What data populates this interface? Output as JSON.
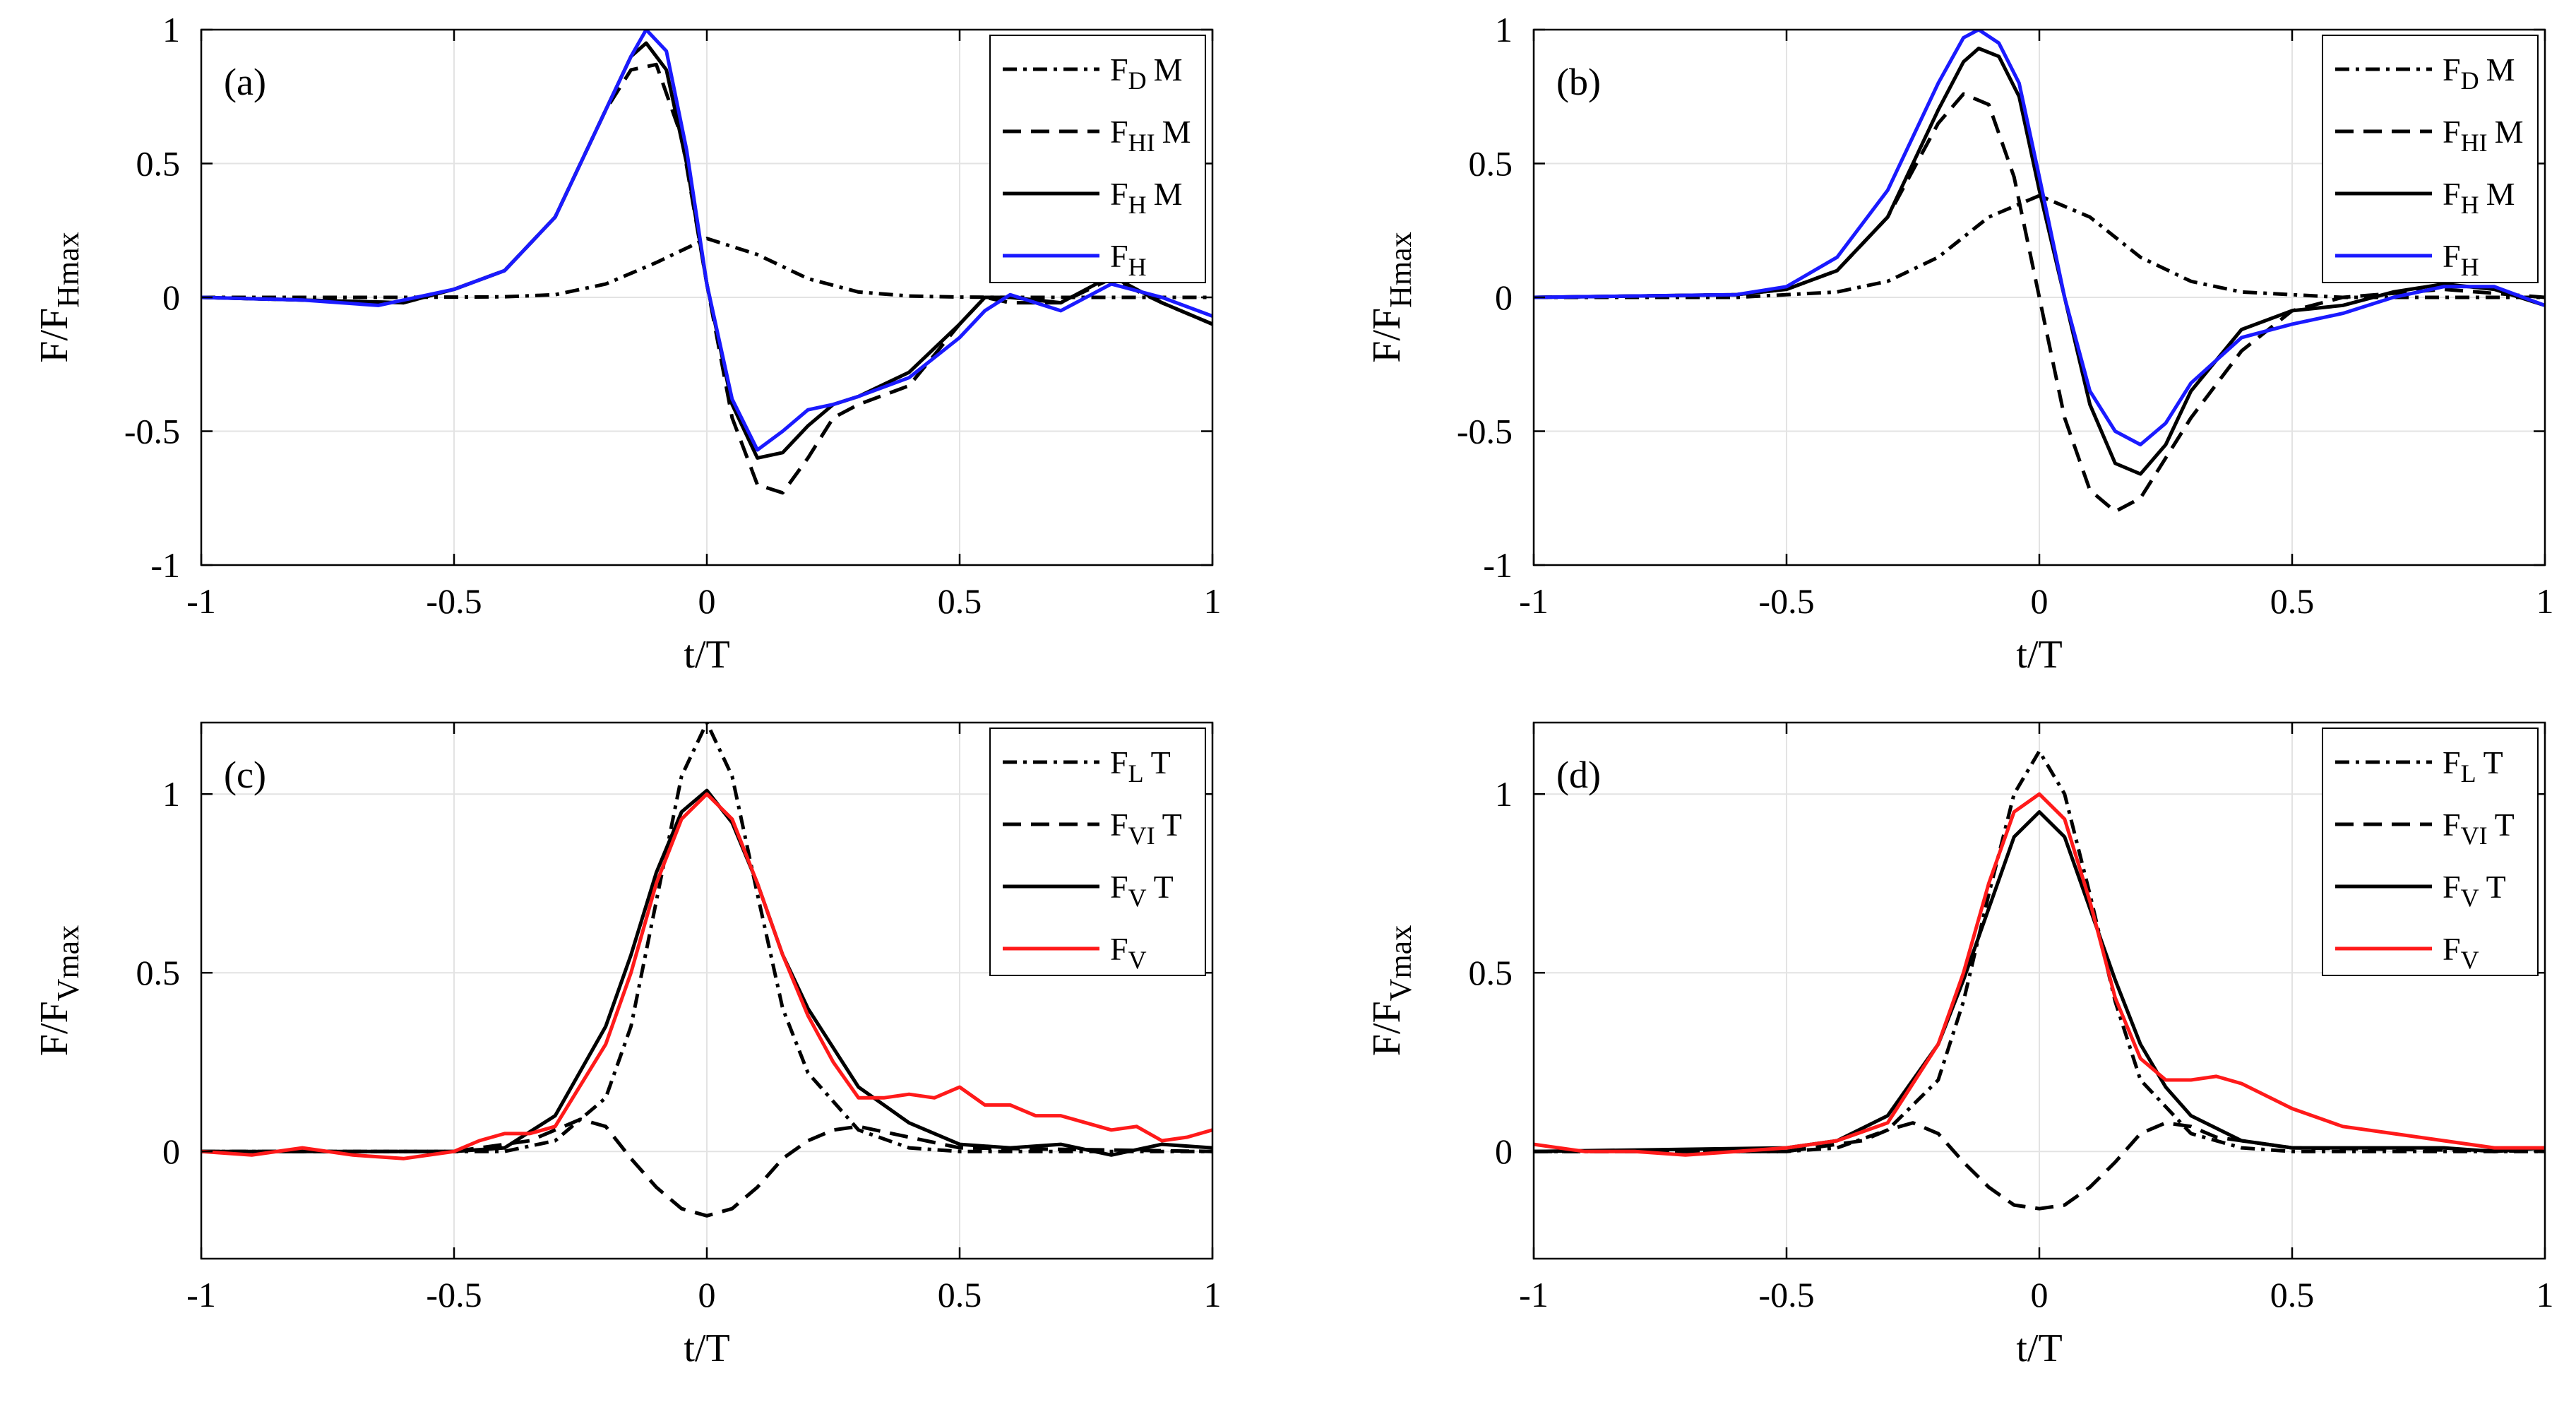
{
  "figure": {
    "colors": {
      "black": "#000000",
      "blue": "#1a1aff",
      "red": "#ff1a1a",
      "grid": "#e3e3e3"
    }
  },
  "chart_data": [
    {
      "panel": "(a)",
      "type": "line",
      "xlabel": "t/T",
      "ylabel": {
        "main": "F/F",
        "sub": "Hmax"
      },
      "xlim": [
        -1,
        1
      ],
      "ylim": [
        -1,
        1
      ],
      "xticks": [
        "-1",
        "-0.5",
        "0",
        "0.5",
        "1"
      ],
      "yticks": [
        "-1",
        "-0.5",
        "0",
        "0.5",
        "1"
      ],
      "grid": true,
      "legend_position": "top-right",
      "series": [
        {
          "name": "FD M",
          "legend_main": "F",
          "legend_sub": "D",
          "legend_suffix": "M",
          "color": "#000000",
          "style": "dashdot",
          "x": [
            -1,
            -0.8,
            -0.6,
            -0.4,
            -0.3,
            -0.2,
            -0.1,
            0,
            0.1,
            0.2,
            0.3,
            0.4,
            0.5,
            0.6,
            0.8,
            1
          ],
          "y": [
            0,
            0,
            0,
            0.002,
            0.01,
            0.05,
            0.13,
            0.22,
            0.16,
            0.07,
            0.02,
            0.005,
            0.001,
            0,
            0,
            0
          ]
        },
        {
          "name": "FHI M",
          "legend_main": "F",
          "legend_sub": "HI",
          "legend_suffix": "M",
          "color": "#000000",
          "style": "dashed",
          "x": [
            -1,
            -0.8,
            -0.6,
            -0.5,
            -0.4,
            -0.3,
            -0.2,
            -0.15,
            -0.1,
            -0.05,
            0,
            0.05,
            0.1,
            0.15,
            0.2,
            0.25,
            0.3,
            0.4,
            0.5,
            0.55,
            0.6,
            0.7,
            0.8,
            0.9,
            1
          ],
          "y": [
            0,
            -0.01,
            -0.02,
            0.03,
            0.1,
            0.3,
            0.7,
            0.85,
            0.87,
            0.6,
            0.05,
            -0.45,
            -0.7,
            -0.73,
            -0.6,
            -0.45,
            -0.4,
            -0.33,
            -0.1,
            0,
            -0.02,
            -0.02,
            0.07,
            -0.02,
            -0.1
          ]
        },
        {
          "name": "FH M",
          "legend_main": "F",
          "legend_sub": "H",
          "legend_suffix": "M",
          "color": "#000000",
          "style": "solid",
          "x": [
            -1,
            -0.8,
            -0.6,
            -0.5,
            -0.4,
            -0.3,
            -0.2,
            -0.15,
            -0.12,
            -0.08,
            -0.04,
            0,
            0.05,
            0.1,
            0.15,
            0.2,
            0.25,
            0.3,
            0.4,
            0.5,
            0.55,
            0.6,
            0.7,
            0.8,
            0.9,
            1
          ],
          "y": [
            0,
            -0.01,
            -0.02,
            0.03,
            0.1,
            0.3,
            0.7,
            0.9,
            0.95,
            0.85,
            0.5,
            0.05,
            -0.4,
            -0.6,
            -0.58,
            -0.48,
            -0.4,
            -0.37,
            -0.28,
            -0.1,
            0,
            0,
            -0.02,
            0.08,
            -0.02,
            -0.1
          ]
        },
        {
          "name": "FH",
          "legend_main": "F",
          "legend_sub": "H",
          "legend_suffix": "",
          "color": "#1a1aff",
          "style": "solid",
          "x": [
            -1,
            -0.8,
            -0.65,
            -0.5,
            -0.4,
            -0.3,
            -0.2,
            -0.15,
            -0.12,
            -0.08,
            -0.04,
            0,
            0.05,
            0.1,
            0.15,
            0.2,
            0.25,
            0.3,
            0.4,
            0.5,
            0.55,
            0.6,
            0.7,
            0.8,
            0.9,
            1
          ],
          "y": [
            0,
            -0.01,
            -0.03,
            0.03,
            0.1,
            0.3,
            0.7,
            0.9,
            1.0,
            0.92,
            0.55,
            0.05,
            -0.38,
            -0.57,
            -0.5,
            -0.42,
            -0.4,
            -0.37,
            -0.3,
            -0.15,
            -0.05,
            0.01,
            -0.05,
            0.05,
            0.0,
            -0.07
          ]
        }
      ]
    },
    {
      "panel": "(b)",
      "type": "line",
      "xlabel": "t/T",
      "ylabel": {
        "main": "F/F",
        "sub": "Hmax"
      },
      "xlim": [
        -1,
        1
      ],
      "ylim": [
        -1,
        1
      ],
      "xticks": [
        "-1",
        "-0.5",
        "0",
        "0.5",
        "1"
      ],
      "yticks": [
        "-1",
        "-0.5",
        "0",
        "0.5",
        "1"
      ],
      "grid": true,
      "legend_position": "top-right",
      "series": [
        {
          "name": "FD M",
          "legend_main": "F",
          "legend_sub": "D",
          "legend_suffix": "M",
          "color": "#000000",
          "style": "dashdot",
          "x": [
            -1,
            -0.6,
            -0.4,
            -0.3,
            -0.2,
            -0.1,
            0,
            0.1,
            0.2,
            0.3,
            0.4,
            0.6,
            1
          ],
          "y": [
            0,
            0,
            0.02,
            0.06,
            0.15,
            0.3,
            0.38,
            0.3,
            0.15,
            0.06,
            0.02,
            0,
            0
          ]
        },
        {
          "name": "FHI M",
          "legend_main": "F",
          "legend_sub": "HI",
          "legend_suffix": "M",
          "color": "#000000",
          "style": "dashed",
          "x": [
            -1,
            -0.6,
            -0.5,
            -0.4,
            -0.3,
            -0.2,
            -0.15,
            -0.1,
            -0.05,
            0,
            0.05,
            0.1,
            0.15,
            0.2,
            0.3,
            0.4,
            0.5,
            0.6,
            0.8,
            1
          ],
          "y": [
            0,
            0.01,
            0.03,
            0.1,
            0.3,
            0.65,
            0.76,
            0.72,
            0.45,
            0.0,
            -0.45,
            -0.72,
            -0.8,
            -0.75,
            -0.45,
            -0.2,
            -0.05,
            0,
            0.03,
            0
          ]
        },
        {
          "name": "FH M",
          "legend_main": "F",
          "legend_sub": "H",
          "legend_suffix": "M",
          "color": "#000000",
          "style": "solid",
          "x": [
            -1,
            -0.6,
            -0.5,
            -0.4,
            -0.3,
            -0.2,
            -0.15,
            -0.12,
            -0.08,
            -0.04,
            0,
            0.05,
            0.1,
            0.15,
            0.2,
            0.25,
            0.3,
            0.4,
            0.5,
            0.6,
            0.7,
            0.8,
            0.9,
            1
          ],
          "y": [
            0,
            0.01,
            0.03,
            0.1,
            0.3,
            0.7,
            0.88,
            0.93,
            0.9,
            0.75,
            0.4,
            0.0,
            -0.4,
            -0.62,
            -0.66,
            -0.55,
            -0.35,
            -0.12,
            -0.05,
            -0.03,
            0.02,
            0.05,
            0.03,
            -0.03
          ]
        },
        {
          "name": "FH",
          "legend_main": "F",
          "legend_sub": "H",
          "legend_suffix": "",
          "color": "#1a1aff",
          "style": "solid",
          "x": [
            -1,
            -0.6,
            -0.5,
            -0.4,
            -0.3,
            -0.2,
            -0.15,
            -0.12,
            -0.08,
            -0.04,
            0,
            0.05,
            0.1,
            0.15,
            0.2,
            0.25,
            0.3,
            0.4,
            0.5,
            0.6,
            0.7,
            0.8,
            0.9,
            1
          ],
          "y": [
            0,
            0.01,
            0.04,
            0.15,
            0.4,
            0.8,
            0.97,
            1.0,
            0.95,
            0.8,
            0.45,
            0.0,
            -0.35,
            -0.5,
            -0.55,
            -0.47,
            -0.32,
            -0.15,
            -0.1,
            -0.06,
            0.0,
            0.04,
            0.04,
            -0.03
          ]
        }
      ]
    },
    {
      "panel": "(c)",
      "type": "line",
      "xlabel": "t/T",
      "ylabel": {
        "main": "F/F",
        "sub": "Vmax"
      },
      "xlim": [
        -1,
        1
      ],
      "ylim": [
        -0.3,
        1.2
      ],
      "xticks": [
        "-1",
        "-0.5",
        "0",
        "0.5",
        "1"
      ],
      "yticks": [
        "0",
        "0.5",
        "1"
      ],
      "grid": true,
      "legend_position": "top-right",
      "series": [
        {
          "name": "FL T",
          "legend_main": "F",
          "legend_sub": "L",
          "legend_suffix": "T",
          "color": "#000000",
          "style": "dashdot",
          "x": [
            -1,
            -0.4,
            -0.3,
            -0.2,
            -0.15,
            -0.1,
            -0.05,
            0,
            0.05,
            0.1,
            0.15,
            0.2,
            0.3,
            0.4,
            0.5,
            1
          ],
          "y": [
            0,
            0,
            0.03,
            0.15,
            0.35,
            0.7,
            1.05,
            1.2,
            1.05,
            0.72,
            0.4,
            0.22,
            0.06,
            0.01,
            0,
            0
          ]
        },
        {
          "name": "FVI T",
          "legend_main": "F",
          "legend_sub": "VI",
          "legend_suffix": "T",
          "color": "#000000",
          "style": "dashed",
          "x": [
            -1,
            -0.5,
            -0.35,
            -0.25,
            -0.2,
            -0.15,
            -0.1,
            -0.05,
            0,
            0.05,
            0.1,
            0.15,
            0.2,
            0.25,
            0.3,
            0.4,
            0.5,
            1
          ],
          "y": [
            0,
            0,
            0.03,
            0.09,
            0.07,
            -0.02,
            -0.1,
            -0.16,
            -0.18,
            -0.16,
            -0.1,
            -0.02,
            0.03,
            0.06,
            0.07,
            0.04,
            0.01,
            0
          ]
        },
        {
          "name": "FV T",
          "legend_main": "F",
          "legend_sub": "V",
          "legend_suffix": "T",
          "color": "#000000",
          "style": "solid",
          "x": [
            -1,
            -0.5,
            -0.4,
            -0.3,
            -0.2,
            -0.15,
            -0.1,
            -0.05,
            0,
            0.05,
            0.1,
            0.15,
            0.2,
            0.3,
            0.4,
            0.5,
            0.6,
            0.7,
            0.8,
            0.9,
            1
          ],
          "y": [
            0,
            0,
            0.01,
            0.1,
            0.35,
            0.55,
            0.78,
            0.95,
            1.01,
            0.92,
            0.75,
            0.55,
            0.4,
            0.18,
            0.08,
            0.02,
            0.01,
            0.02,
            -0.01,
            0.02,
            0.01
          ]
        },
        {
          "name": "FV",
          "legend_main": "F",
          "legend_sub": "V",
          "legend_suffix": "",
          "color": "#ff1a1a",
          "style": "solid",
          "x": [
            -1,
            -0.9,
            -0.8,
            -0.7,
            -0.6,
            -0.5,
            -0.45,
            -0.4,
            -0.35,
            -0.3,
            -0.2,
            -0.15,
            -0.1,
            -0.05,
            0,
            0.05,
            0.1,
            0.15,
            0.2,
            0.25,
            0.3,
            0.35,
            0.4,
            0.45,
            0.5,
            0.55,
            0.6,
            0.65,
            0.7,
            0.75,
            0.8,
            0.85,
            0.9,
            0.95,
            1
          ],
          "y": [
            0,
            -0.01,
            0.01,
            -0.01,
            -0.02,
            0.0,
            0.03,
            0.05,
            0.05,
            0.07,
            0.3,
            0.5,
            0.75,
            0.93,
            1.0,
            0.93,
            0.75,
            0.55,
            0.38,
            0.25,
            0.15,
            0.15,
            0.16,
            0.15,
            0.18,
            0.13,
            0.13,
            0.1,
            0.1,
            0.08,
            0.06,
            0.07,
            0.03,
            0.04,
            0.06
          ]
        }
      ]
    },
    {
      "panel": "(d)",
      "type": "line",
      "xlabel": "t/T",
      "ylabel": {
        "main": "F/F",
        "sub": "Vmax"
      },
      "xlim": [
        -1,
        1
      ],
      "ylim": [
        -0.3,
        1.2
      ],
      "xticks": [
        "-1",
        "-0.5",
        "0",
        "0.5",
        "1"
      ],
      "yticks": [
        "0",
        "0.5",
        "1"
      ],
      "grid": true,
      "legend_position": "top-right",
      "series": [
        {
          "name": "FL T",
          "legend_main": "F",
          "legend_sub": "L",
          "legend_suffix": "T",
          "color": "#000000",
          "style": "dashdot",
          "x": [
            -1,
            -0.5,
            -0.4,
            -0.3,
            -0.2,
            -0.15,
            -0.1,
            -0.05,
            0,
            0.05,
            0.1,
            0.15,
            0.2,
            0.3,
            0.4,
            0.5,
            1
          ],
          "y": [
            0,
            0,
            0.01,
            0.06,
            0.2,
            0.42,
            0.72,
            1.0,
            1.12,
            1.0,
            0.72,
            0.42,
            0.2,
            0.05,
            0.01,
            0,
            0
          ]
        },
        {
          "name": "FVI T",
          "legend_main": "F",
          "legend_sub": "VI",
          "legend_suffix": "T",
          "color": "#000000",
          "style": "dashed",
          "x": [
            -1,
            -0.5,
            -0.35,
            -0.3,
            -0.25,
            -0.2,
            -0.15,
            -0.1,
            -0.05,
            0,
            0.05,
            0.1,
            0.15,
            0.2,
            0.25,
            0.3,
            0.35,
            0.5,
            1
          ],
          "y": [
            0,
            0,
            0.03,
            0.06,
            0.08,
            0.05,
            -0.03,
            -0.1,
            -0.15,
            -0.16,
            -0.15,
            -0.1,
            -0.03,
            0.05,
            0.08,
            0.07,
            0.04,
            0.01,
            0
          ]
        },
        {
          "name": "FV T",
          "legend_main": "F",
          "legend_sub": "V",
          "legend_suffix": "T",
          "color": "#000000",
          "style": "solid",
          "x": [
            -1,
            -0.5,
            -0.4,
            -0.3,
            -0.2,
            -0.15,
            -0.1,
            -0.05,
            0,
            0.05,
            0.1,
            0.15,
            0.2,
            0.25,
            0.3,
            0.4,
            0.5,
            0.6,
            0.7,
            0.8,
            0.9,
            1
          ],
          "y": [
            0,
            0.01,
            0.03,
            0.1,
            0.3,
            0.48,
            0.68,
            0.88,
            0.95,
            0.88,
            0.68,
            0.48,
            0.3,
            0.18,
            0.1,
            0.03,
            0.01,
            0.01,
            0.01,
            0.01,
            0.0,
            0.01
          ]
        },
        {
          "name": "FV",
          "legend_main": "F",
          "legend_sub": "V",
          "legend_suffix": "",
          "color": "#ff1a1a",
          "style": "solid",
          "x": [
            -1,
            -0.9,
            -0.8,
            -0.7,
            -0.6,
            -0.5,
            -0.4,
            -0.3,
            -0.2,
            -0.15,
            -0.1,
            -0.05,
            0,
            0.05,
            0.1,
            0.15,
            0.2,
            0.25,
            0.3,
            0.35,
            0.4,
            0.5,
            0.6,
            0.7,
            0.8,
            0.9,
            1
          ],
          "y": [
            0.02,
            0.0,
            0.0,
            -0.01,
            0.0,
            0.01,
            0.03,
            0.08,
            0.3,
            0.5,
            0.75,
            0.95,
            1.0,
            0.93,
            0.7,
            0.43,
            0.26,
            0.2,
            0.2,
            0.21,
            0.19,
            0.12,
            0.07,
            0.05,
            0.03,
            0.01,
            0.01
          ]
        }
      ]
    }
  ]
}
